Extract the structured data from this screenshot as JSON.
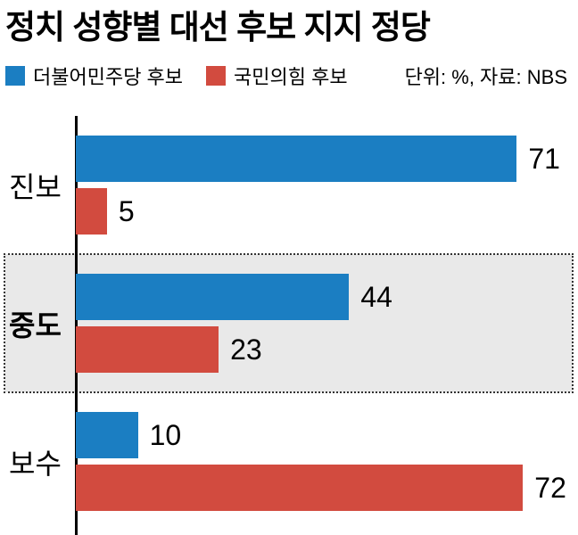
{
  "title": "정치 성향별 대선 후보 지지 정당",
  "legend": {
    "series1_label": "더불어민주당 후보",
    "series2_label": "국민의힘 후보",
    "note": "단위: %, 자료: NBS"
  },
  "colors": {
    "blue": "#1b7ec2",
    "red": "#d24b3f",
    "highlight_bg": "#e9e9e9"
  },
  "chart_data": {
    "type": "bar",
    "orientation": "horizontal",
    "title": "정치 성향별 대선 후보 지지 정당",
    "unit": "%",
    "source": "NBS",
    "categories": [
      "진보",
      "중도",
      "보수"
    ],
    "series": [
      {
        "name": "더불어민주당 후보",
        "color": "#1b7ec2",
        "values": [
          71,
          44,
          10
        ]
      },
      {
        "name": "국민의힘 후보",
        "color": "#d24b3f",
        "values": [
          5,
          23,
          72
        ]
      }
    ],
    "xlim": [
      0,
      80
    ],
    "highlighted_category": "중도",
    "legend_position": "top",
    "grid": false
  }
}
